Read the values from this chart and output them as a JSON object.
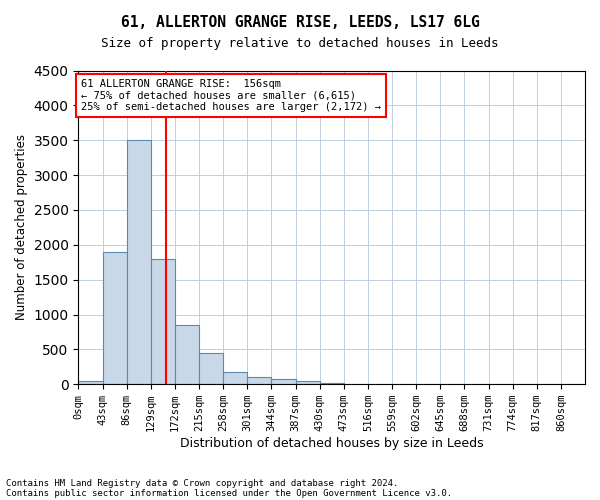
{
  "title1": "61, ALLERTON GRANGE RISE, LEEDS, LS17 6LG",
  "title2": "Size of property relative to detached houses in Leeds",
  "xlabel": "Distribution of detached houses by size in Leeds",
  "ylabel": "Number of detached properties",
  "bin_labels": [
    "0sqm",
    "43sqm",
    "86sqm",
    "129sqm",
    "172sqm",
    "215sqm",
    "258sqm",
    "301sqm",
    "344sqm",
    "387sqm",
    "430sqm",
    "473sqm",
    "516sqm",
    "559sqm",
    "602sqm",
    "645sqm",
    "688sqm",
    "731sqm",
    "774sqm",
    "817sqm",
    "860sqm"
  ],
  "bar_values": [
    50,
    1900,
    3500,
    1800,
    850,
    450,
    175,
    100,
    75,
    50,
    20,
    10,
    5,
    3,
    2,
    1,
    1,
    0,
    0,
    0,
    0
  ],
  "bar_color": "#c8d8e8",
  "bar_edgecolor": "#5a8ab0",
  "red_line_x": 156,
  "ylim": [
    0,
    4500
  ],
  "yticks": [
    0,
    500,
    1000,
    1500,
    2000,
    2500,
    3000,
    3500,
    4000,
    4500
  ],
  "annotation_title": "61 ALLERTON GRANGE RISE:  156sqm",
  "annotation_line1": "← 75% of detached houses are smaller (6,615)",
  "annotation_line2": "25% of semi-detached houses are larger (2,172) →",
  "footnote1": "Contains HM Land Registry data © Crown copyright and database right 2024.",
  "footnote2": "Contains public sector information licensed under the Open Government Licence v3.0.",
  "bin_width": 43
}
